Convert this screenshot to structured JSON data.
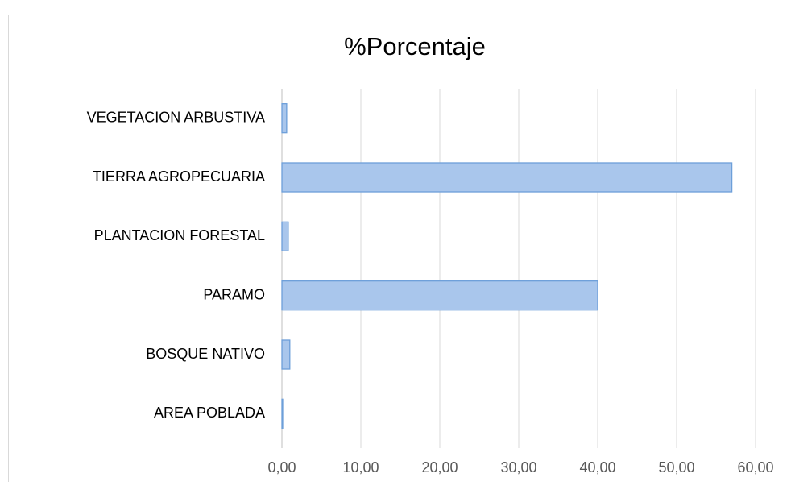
{
  "chart_data": {
    "type": "barh",
    "title": "%Porcentaje",
    "categories": [
      "VEGETACION ARBUSTIVA",
      "TIERRA AGROPECUARIA",
      "PLANTACION FORESTAL",
      "PARAMO",
      "BOSQUE NATIVO",
      "AREA POBLADA"
    ],
    "values": [
      0.6,
      57,
      0.8,
      40,
      1.0,
      0.1
    ],
    "color": "#a9c6ec",
    "edgecolor": "#6d9fd9",
    "xlim": [
      0,
      60
    ],
    "xticks": [
      {
        "value": 0,
        "label": "0,00"
      },
      {
        "value": 10,
        "label": "10,00"
      },
      {
        "value": 20,
        "label": "20,00"
      },
      {
        "value": 30,
        "label": "30,00"
      },
      {
        "value": 40,
        "label": "40,00"
      },
      {
        "value": 50,
        "label": "50,00"
      },
      {
        "value": 60,
        "label": "60,00"
      }
    ],
    "grid": true
  }
}
